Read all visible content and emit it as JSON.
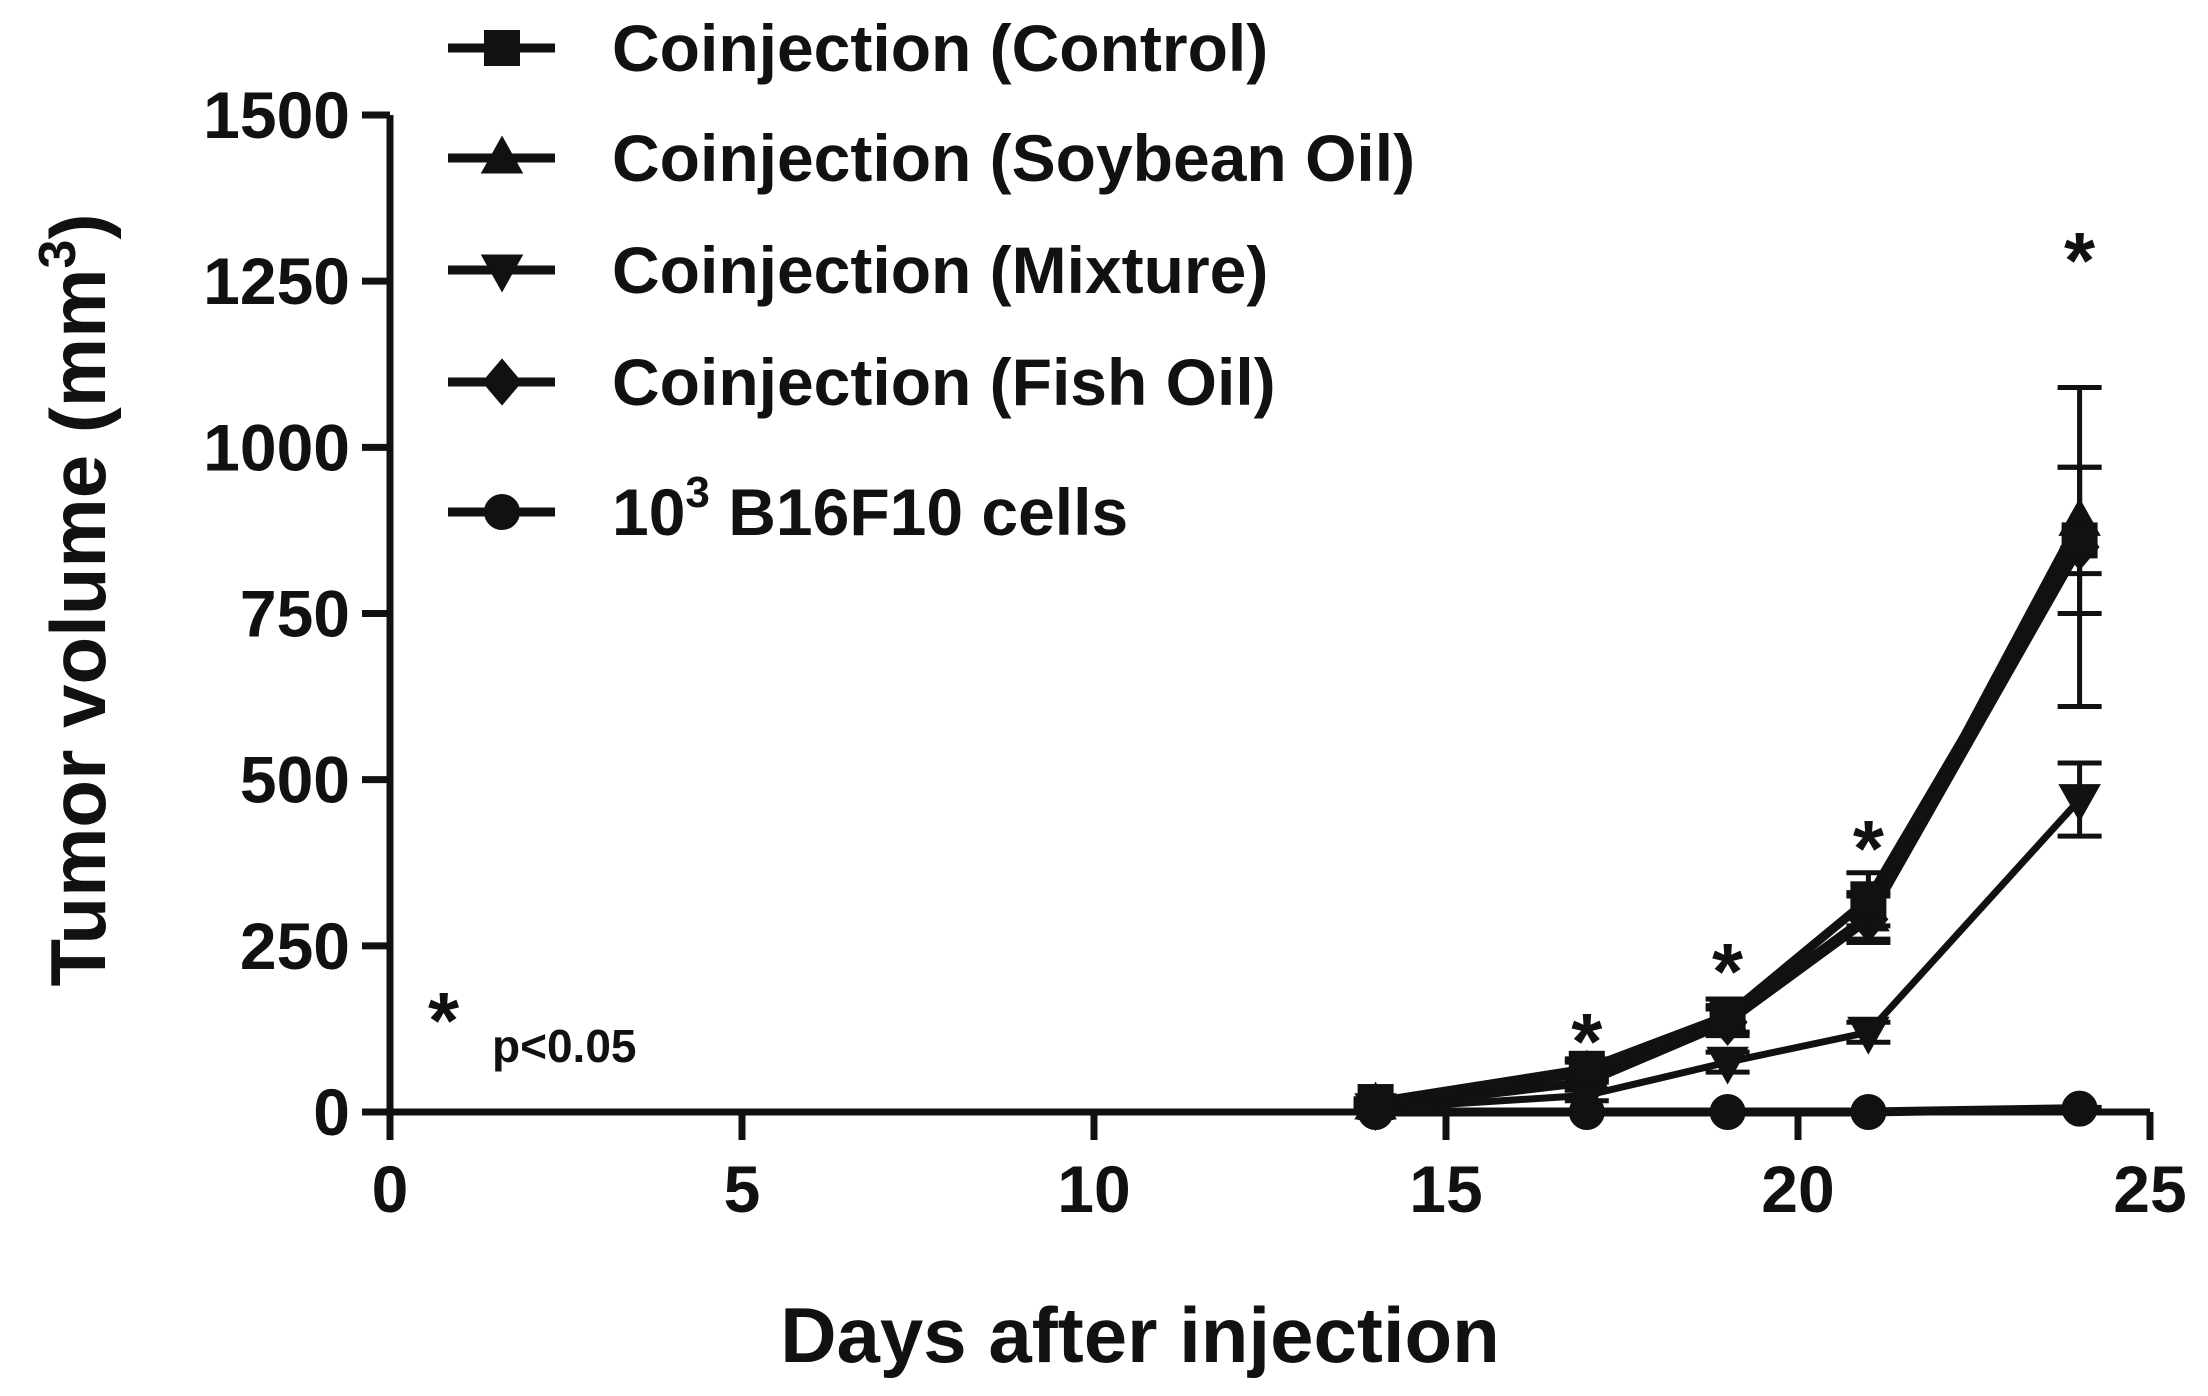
{
  "chart_data": {
    "type": "line",
    "xlabel": "Days after injection",
    "ylabel": "Tumor volume (mm",
    "ylabel_superscript": "3",
    "ylabel_suffix": ")",
    "xlim": [
      0,
      25
    ],
    "ylim": [
      0,
      1500
    ],
    "x_ticks": [
      0,
      5,
      10,
      15,
      20,
      25
    ],
    "y_ticks": [
      0,
      250,
      500,
      750,
      1000,
      1250,
      1500
    ],
    "x_tick_labels": [
      "0",
      "5",
      "10",
      "15",
      "20",
      "25"
    ],
    "y_tick_labels": [
      "0",
      "250",
      "500",
      "750",
      "1000",
      "1250",
      "1500"
    ],
    "grid": false,
    "legend_position": "top",
    "series": [
      {
        "name": "Coinjection (Control)",
        "marker": "square",
        "x": [
          14,
          17,
          19,
          21,
          24
        ],
        "y": [
          15,
          65,
          145,
          320,
          860
        ],
        "err": [
          5,
          15,
          25,
          40,
          110
        ]
      },
      {
        "name": "Coinjection (Soybean Oil)",
        "marker": "triangle-up",
        "x": [
          14,
          17,
          19,
          21,
          24
        ],
        "y": [
          12,
          60,
          140,
          295,
          890
        ],
        "err": [
          5,
          15,
          20,
          35,
          80
        ]
      },
      {
        "name": "Coinjection (Mixture)",
        "marker": "triangle-down",
        "x": [
          14,
          17,
          19,
          21,
          24
        ],
        "y": [
          5,
          25,
          75,
          120,
          470
        ],
        "err": [
          2,
          8,
          15,
          15,
          55
        ]
      },
      {
        "name": "Coinjection (Fish Oil)",
        "marker": "diamond",
        "x": [
          14,
          17,
          19,
          21,
          24
        ],
        "y": [
          8,
          45,
          135,
          290,
          850
        ],
        "err": [
          4,
          12,
          20,
          35,
          240
        ]
      },
      {
        "name": "10",
        "name_superscript": "3",
        "name_suffix": " B16F10 cells",
        "marker": "circle",
        "x": [
          14,
          17,
          19,
          21,
          24
        ],
        "y": [
          0,
          0,
          0,
          0,
          5
        ],
        "err": [
          0,
          0,
          0,
          0,
          2
        ]
      }
    ],
    "significance_markers": [
      {
        "x": 17,
        "y": 125,
        "label": "*"
      },
      {
        "x": 19,
        "y": 230,
        "label": "*"
      },
      {
        "x": 21,
        "y": 415,
        "label": "*"
      },
      {
        "x": 24,
        "y": 1300,
        "label": "*"
      }
    ],
    "annotation": {
      "star": "*",
      "text": "p<0.05"
    }
  }
}
